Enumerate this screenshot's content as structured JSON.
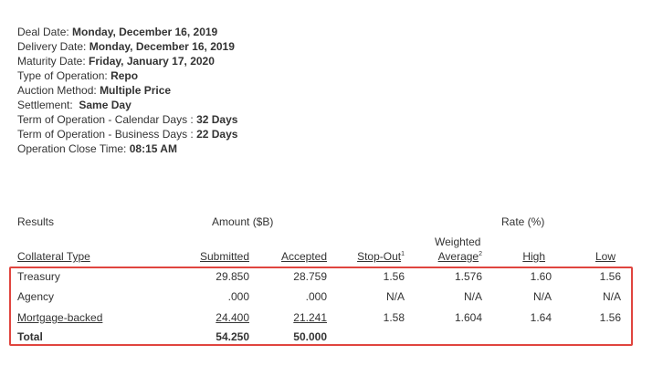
{
  "details": [
    {
      "label": "Deal Date: ",
      "value": "Monday, December 16, 2019"
    },
    {
      "label": "Delivery Date: ",
      "value": "Monday, December 16, 2019"
    },
    {
      "label": "Maturity Date: ",
      "value": "Friday, January 17, 2020"
    },
    {
      "label": "Type of Operation: ",
      "value": "Repo"
    },
    {
      "label": "Auction Method: ",
      "value": "Multiple Price"
    },
    {
      "label": "Settlement:  ",
      "value": "Same Day"
    },
    {
      "label": "Term of Operation - Calendar Days : ",
      "value": "32 Days"
    },
    {
      "label": "Term of Operation - Business Days : ",
      "value": "22 Days"
    },
    {
      "label": "Operation Close Time: ",
      "value": "08:15 AM"
    }
  ],
  "results": {
    "section_label": "Results",
    "amount_group_label": "Amount ($B)",
    "rate_group_label": "Rate (%)",
    "columns": {
      "collateral_type": "Collateral Type",
      "submitted": "Submitted",
      "accepted": "Accepted",
      "stop_out": "Stop-Out",
      "stop_out_note": "1",
      "weighted_line1": "Weighted",
      "weighted_line2": "Average",
      "weighted_note": "2",
      "high": "High",
      "low": "Low"
    },
    "rows": {
      "treasury": {
        "type": "Treasury",
        "submitted": "29.850",
        "accepted": "28.759",
        "stop_out": "1.56",
        "weighted_average": "1.576",
        "high": "1.60",
        "low": "1.56"
      },
      "agency": {
        "type": "Agency",
        "submitted": ".000",
        "accepted": ".000",
        "stop_out": "N/A",
        "weighted_average": "N/A",
        "high": "N/A",
        "low": "N/A"
      },
      "mortgage": {
        "type": "Mortgage-backed",
        "submitted": "24.400",
        "accepted": "21.241",
        "stop_out": "1.58",
        "weighted_average": "1.604",
        "high": "1.64",
        "low": "1.56"
      },
      "total": {
        "type": "Total",
        "submitted": "54.250",
        "accepted": "50.000"
      }
    }
  },
  "highlight_color": "#e0453f"
}
